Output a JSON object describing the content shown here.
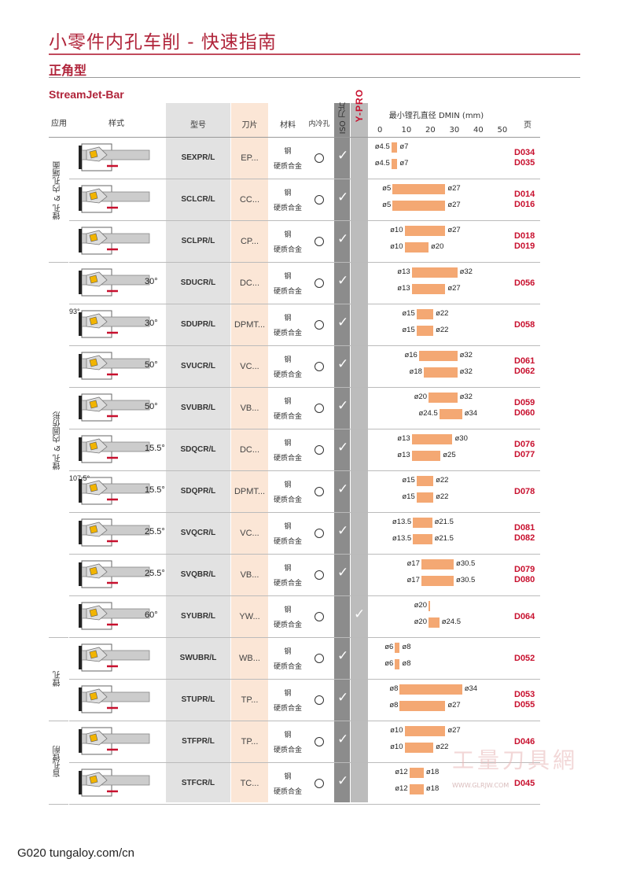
{
  "header": {
    "title": "小零件内孔车削 - 快速指南",
    "subtitle": "正角型",
    "product": "StreamJet-Bar"
  },
  "columns": {
    "application": "应用",
    "style": "样式",
    "model": "型号",
    "insert": "刀片",
    "material": "材料",
    "coolant": "内冷孔",
    "iso": "ISO 刀片",
    "ypro": "Y-PRO",
    "dmin": "最小镗孔直径 DMIN (mm)",
    "page": "页"
  },
  "scale": [
    "0",
    "10",
    "20",
    "30",
    "40",
    "50"
  ],
  "app_groups": [
    {
      "label": "镗孔 & 内孔端面",
      "start": 0,
      "end": 3
    },
    {
      "label": "镗孔 & 内圆仿形",
      "start": 3,
      "end": 12
    },
    {
      "label": "镗孔",
      "start": 12,
      "end": 14
    },
    {
      "label": "盲孔镗削",
      "start": 14,
      "end": 16
    }
  ],
  "materials": [
    "钢",
    "硬质合金"
  ],
  "check": "✓",
  "rows": [
    {
      "model": "SEXPR/L",
      "insert": "EP...",
      "angle": "",
      "pages": [
        "D034",
        "D035"
      ],
      "iso": true,
      "ypro": false,
      "ranges": [
        [
          "ø4.5",
          "ø7",
          4.5,
          7
        ],
        [
          "ø4.5",
          "ø7",
          4.5,
          7
        ]
      ]
    },
    {
      "model": "SCLCR/L",
      "insert": "CC...",
      "angle": "",
      "pages": [
        "D014",
        "D016"
      ],
      "iso": true,
      "ypro": false,
      "ranges": [
        [
          "ø5",
          "ø27",
          5,
          27
        ],
        [
          "ø5",
          "ø27",
          5,
          27
        ]
      ]
    },
    {
      "model": "SCLPR/L",
      "insert": "CP...",
      "angle": "",
      "pages": [
        "D018",
        "D019"
      ],
      "iso": true,
      "ypro": false,
      "ranges": [
        [
          "ø10",
          "ø27",
          10,
          27
        ],
        [
          "ø10",
          "ø20",
          10,
          20
        ]
      ]
    },
    {
      "model": "SDUCR/L",
      "insert": "DC...",
      "angle": "30°",
      "pages": [
        "D056"
      ],
      "iso": true,
      "ypro": false,
      "ranges": [
        [
          "ø13",
          "ø32",
          13,
          32
        ],
        [
          "ø13",
          "ø27",
          13,
          27
        ]
      ]
    },
    {
      "model": "SDUPR/L",
      "insert": "DPMT...",
      "angle": "30°",
      "angle2": "93°",
      "pages": [
        "D058"
      ],
      "iso": true,
      "ypro": false,
      "ranges": [
        [
          "ø15",
          "ø22",
          15,
          22
        ],
        [
          "ø15",
          "ø22",
          15,
          22
        ]
      ]
    },
    {
      "model": "SVUCR/L",
      "insert": "VC...",
      "angle": "50°",
      "pages": [
        "D061",
        "D062"
      ],
      "iso": true,
      "ypro": false,
      "ranges": [
        [
          "ø16",
          "ø32",
          16,
          32
        ],
        [
          "ø18",
          "ø32",
          18,
          32
        ]
      ]
    },
    {
      "model": "SVUBR/L",
      "insert": "VB...",
      "angle": "50°",
      "pages": [
        "D059",
        "D060"
      ],
      "iso": true,
      "ypro": false,
      "ranges": [
        [
          "ø20",
          "ø32",
          20,
          32
        ],
        [
          "ø24.5",
          "ø34",
          24.5,
          34
        ]
      ]
    },
    {
      "model": "SDQCR/L",
      "insert": "DC...",
      "angle": "15.5°",
      "pages": [
        "D076",
        "D077"
      ],
      "iso": true,
      "ypro": false,
      "ranges": [
        [
          "ø13",
          "ø30",
          13,
          30
        ],
        [
          "ø13",
          "ø25",
          13,
          25
        ]
      ]
    },
    {
      "model": "SDQPR/L",
      "insert": "DPMT...",
      "angle": "15.5°",
      "angle2": "107.5°",
      "pages": [
        "D078"
      ],
      "iso": true,
      "ypro": false,
      "ranges": [
        [
          "ø15",
          "ø22",
          15,
          22
        ],
        [
          "ø15",
          "ø22",
          15,
          22
        ]
      ]
    },
    {
      "model": "SVQCR/L",
      "insert": "VC...",
      "angle": "25.5°",
      "pages": [
        "D081",
        "D082"
      ],
      "iso": true,
      "ypro": false,
      "ranges": [
        [
          "ø13.5",
          "ø21.5",
          13.5,
          21.5
        ],
        [
          "ø13.5",
          "ø21.5",
          13.5,
          21.5
        ]
      ]
    },
    {
      "model": "SVQBR/L",
      "insert": "VB...",
      "angle": "25.5°",
      "pages": [
        "D079",
        "D080"
      ],
      "iso": true,
      "ypro": false,
      "ranges": [
        [
          "ø17",
          "ø30.5",
          17,
          30.5
        ],
        [
          "ø17",
          "ø30.5",
          17,
          30.5
        ]
      ]
    },
    {
      "model": "SYUBR/L",
      "insert": "YW...",
      "angle": "60°",
      "pages": [
        "D064"
      ],
      "iso": false,
      "ypro": true,
      "ranges": [
        [
          "ø20",
          "",
          20,
          20.5
        ],
        [
          "ø20",
          "ø24.5",
          20,
          24.5
        ]
      ]
    },
    {
      "model": "SWUBR/L",
      "insert": "WB...",
      "angle": "",
      "pages": [
        "D052"
      ],
      "iso": true,
      "ypro": false,
      "ranges": [
        [
          "ø6",
          "ø8",
          6,
          8
        ],
        [
          "ø6",
          "ø8",
          6,
          8
        ]
      ]
    },
    {
      "model": "STUPR/L",
      "insert": "TP...",
      "angle": "",
      "pages": [
        "D053",
        "D055"
      ],
      "iso": true,
      "ypro": false,
      "ranges": [
        [
          "ø8",
          "ø34",
          8,
          34
        ],
        [
          "ø8",
          "ø27",
          8,
          27
        ]
      ]
    },
    {
      "model": "STFPR/L",
      "insert": "TP...",
      "angle": "",
      "pages": [
        "D046"
      ],
      "iso": true,
      "ypro": false,
      "ranges": [
        [
          "ø10",
          "ø27",
          10,
          27
        ],
        [
          "ø10",
          "ø22",
          10,
          22
        ]
      ]
    },
    {
      "model": "STFCR/L",
      "insert": "TC...",
      "angle": "",
      "pages": [
        "D045"
      ],
      "iso": true,
      "ypro": false,
      "ranges": [
        [
          "ø12",
          "ø18",
          12,
          18
        ],
        [
          "ø12",
          "ø18",
          12,
          18
        ]
      ]
    }
  ],
  "footer": {
    "code": "G020",
    "url": "tungaloy.com/cn"
  },
  "watermark": {
    "logo": "工量刀具網",
    "url": "WWW.GLRJW.COM"
  }
}
